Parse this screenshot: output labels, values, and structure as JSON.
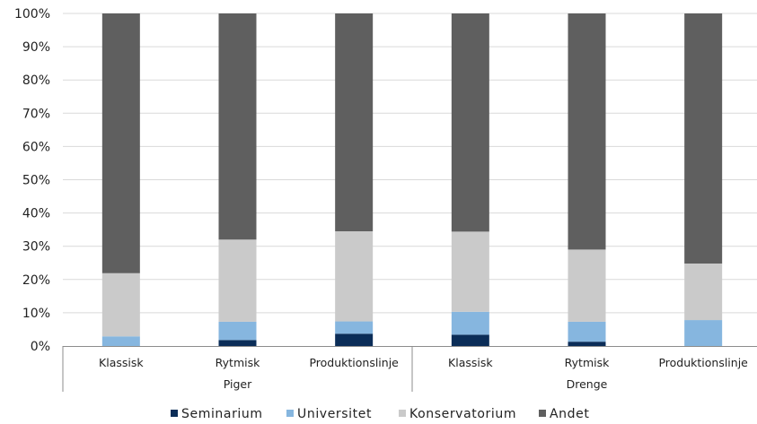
{
  "chart_data": {
    "type": "bar",
    "stacked": true,
    "percent": true,
    "ylim": [
      0,
      100
    ],
    "yticks": [
      "0%",
      "10%",
      "20%",
      "30%",
      "40%",
      "50%",
      "60%",
      "70%",
      "80%",
      "90%",
      "100%"
    ],
    "categories": [
      "Klassisk",
      "Rytmisk",
      "Produktionslinje",
      "Klassisk",
      "Rytmisk",
      "Produktionslinje"
    ],
    "groups": [
      {
        "label": "Piger",
        "categories": [
          "Klassisk",
          "Rytmisk",
          "Produktionslinje"
        ]
      },
      {
        "label": "Drenge",
        "categories": [
          "Klassisk",
          "Rytmisk",
          "Produktionslinje"
        ]
      }
    ],
    "series": [
      {
        "name": "Seminarium",
        "color": "#0b2d58",
        "values": [
          0,
          1.8,
          3.7,
          3.4,
          1.3,
          0
        ]
      },
      {
        "name": "Universitet",
        "color": "#86b6df",
        "values": [
          2.9,
          5.5,
          3.7,
          6.9,
          6.0,
          7.8
        ]
      },
      {
        "name": "Konservatorium",
        "color": "#cacaca",
        "values": [
          19.0,
          24.7,
          27.1,
          24.1,
          21.7,
          17.0
        ]
      },
      {
        "name": "Andet",
        "color": "#5f5f5f",
        "values": [
          78.1,
          68.0,
          65.5,
          65.6,
          71.0,
          75.2
        ]
      }
    ],
    "grid": true,
    "legend": "bottom"
  }
}
